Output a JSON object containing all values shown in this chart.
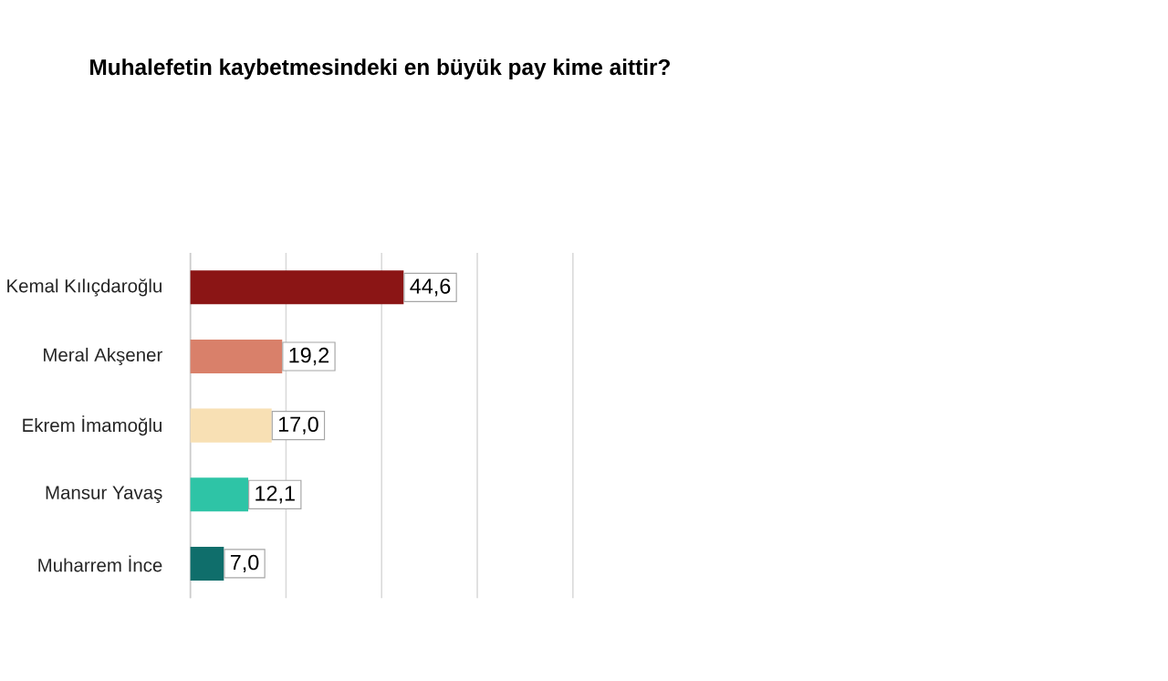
{
  "chart_data": {
    "type": "bar",
    "orientation": "horizontal",
    "title": "Muhalefetin kaybetmesindeki en büyük pay kime aittir?",
    "categories": [
      "Kemal Kılıçdaroğlu",
      "Meral Akşener",
      "Ekrem İmamoğlu",
      "Mansur Yavaş",
      "Muharrem İnce"
    ],
    "values": [
      44.6,
      19.2,
      17.0,
      12.1,
      7.0
    ],
    "value_labels": [
      "44,6",
      "19,2",
      "17,0",
      "12,1",
      "7,0"
    ],
    "colors": [
      "#8b1515",
      "#d9806a",
      "#f8e0b4",
      "#2ec4a6",
      "#0f6e6b"
    ],
    "xlim": [
      0,
      80
    ],
    "xticks": [
      {
        "value": 0,
        "label": null
      },
      {
        "value": 20,
        "label": null
      },
      {
        "value": 40,
        "label": null
      },
      {
        "value": 60,
        "label": null
      },
      {
        "value": 80,
        "label": null
      }
    ],
    "tick_labels": "y",
    "grid": "x"
  }
}
